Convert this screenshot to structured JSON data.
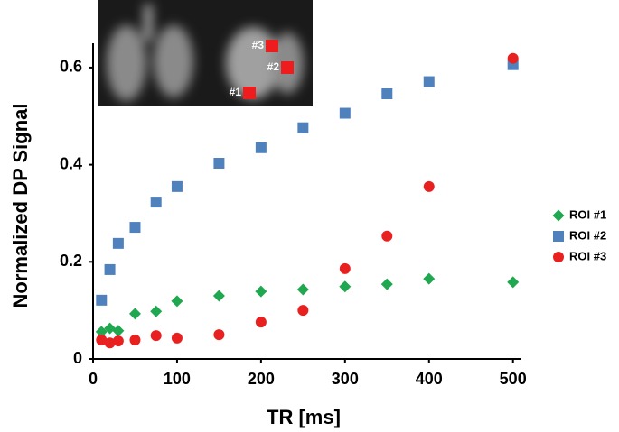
{
  "chart_data": {
    "type": "scatter",
    "x_label": "TR [ms]",
    "y_label": "Normalized DP Signal",
    "annotations": [
      "#3",
      "#2",
      "#1"
    ],
    "xlim": [
      0,
      510
    ],
    "xticks": [
      0,
      100,
      200,
      300,
      400,
      500
    ],
    "ylim": [
      0,
      0.65
    ],
    "yticks": [
      0,
      0.2,
      0.4,
      0.6
    ],
    "grid": false,
    "legend": "right",
    "x": [
      10,
      20,
      30,
      50,
      75,
      100,
      150,
      200,
      250,
      300,
      350,
      400,
      500
    ],
    "series": [
      {
        "name": "ROI #1",
        "color": "#1fa84f",
        "marker": "diamond",
        "values": [
          0.056,
          0.063,
          0.058,
          0.093,
          0.098,
          0.119,
          0.13,
          0.139,
          0.143,
          0.149,
          0.154,
          0.165,
          0.158
        ]
      },
      {
        "name": "ROI #2",
        "color": "#4f81bd",
        "marker": "square",
        "values": [
          0.121,
          0.184,
          0.238,
          0.271,
          0.323,
          0.355,
          0.403,
          0.435,
          0.476,
          0.506,
          0.546,
          0.571,
          0.606
        ]
      },
      {
        "name": "ROI #3",
        "color": "#e8201f",
        "marker": "circle",
        "values": [
          0.039,
          0.033,
          0.037,
          0.039,
          0.048,
          0.043,
          0.05,
          0.076,
          0.1,
          0.186,
          0.253,
          0.355,
          0.619
        ]
      }
    ]
  }
}
